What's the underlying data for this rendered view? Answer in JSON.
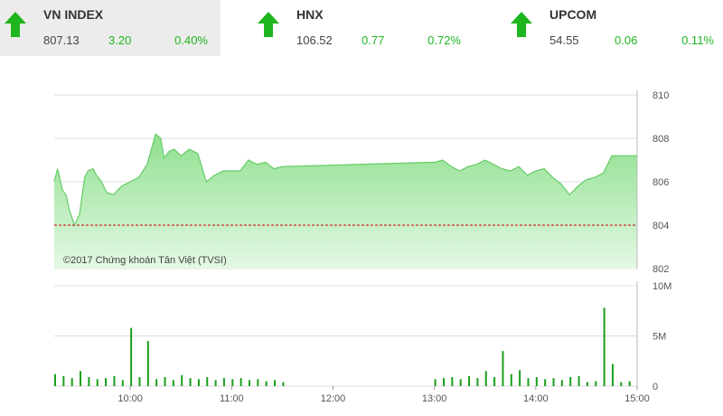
{
  "indices": [
    {
      "name": "VN INDEX",
      "value": "807.13",
      "change": "3.20",
      "percent": "0.40%",
      "direction": "up",
      "active": true
    },
    {
      "name": "HNX",
      "value": "106.52",
      "change": "0.77",
      "percent": "0.72%",
      "direction": "up",
      "active": false
    },
    {
      "name": "UPCOM",
      "value": "54.55",
      "change": "0.06",
      "percent": "0.11%",
      "direction": "up",
      "active": false
    }
  ],
  "colors": {
    "up": "#1fb51f",
    "area_top": "#8fe08f",
    "area_bottom": "#e4f8e4",
    "line": "#66cc66",
    "reference": "#cc0000",
    "volume": "#1a9e1a"
  },
  "chart_data": [
    {
      "type": "area",
      "copyright": "©2017 Chứng khoán Tân Việt (TVSI)",
      "reference_value": 804,
      "y_ticks": [
        "810",
        "808",
        "806",
        "804",
        "802"
      ],
      "ylim": [
        802,
        810
      ],
      "xlim": [
        "09:15",
        "15:00"
      ],
      "x": [
        "09:15",
        "09:17",
        "09:20",
        "09:22",
        "09:24",
        "09:27",
        "09:30",
        "09:33",
        "09:35",
        "09:38",
        "09:40",
        "09:43",
        "09:46",
        "09:50",
        "09:55",
        "10:00",
        "10:05",
        "10:10",
        "10:15",
        "10:18",
        "10:20",
        "10:23",
        "10:26",
        "10:30",
        "10:35",
        "10:40",
        "10:45",
        "10:50",
        "10:55",
        "11:00",
        "11:05",
        "11:10",
        "11:15",
        "11:20",
        "11:25",
        "11:30",
        "13:00",
        "13:05",
        "13:10",
        "13:15",
        "13:20",
        "13:25",
        "13:30",
        "13:35",
        "13:40",
        "13:45",
        "13:50",
        "13:55",
        "14:00",
        "14:05",
        "14:10",
        "14:15",
        "14:20",
        "14:25",
        "14:30",
        "14:35",
        "14:40",
        "14:45",
        "14:50",
        "14:55",
        "15:00"
      ],
      "y": [
        806.0,
        806.6,
        805.6,
        805.4,
        804.7,
        804.0,
        804.5,
        806.2,
        806.5,
        806.6,
        806.3,
        806.0,
        805.5,
        805.4,
        805.8,
        806.0,
        806.2,
        806.8,
        808.2,
        808.0,
        807.1,
        807.4,
        807.5,
        807.2,
        807.5,
        807.3,
        806.0,
        806.3,
        806.5,
        806.5,
        806.5,
        807.0,
        806.8,
        806.9,
        806.6,
        806.7,
        806.9,
        807.0,
        806.7,
        806.5,
        806.7,
        806.8,
        807.0,
        806.8,
        806.6,
        806.5,
        806.7,
        806.3,
        806.5,
        806.6,
        806.2,
        805.9,
        805.4,
        805.8,
        806.1,
        806.2,
        806.4,
        807.2,
        807.2,
        807.2,
        807.2
      ]
    },
    {
      "type": "bar",
      "y_ticks": [
        "10M",
        "5M",
        "0"
      ],
      "ylim": [
        0,
        10
      ],
      "x_ticks": [
        "10:00",
        "11:00",
        "12:00",
        "13:00",
        "14:00",
        "15:00"
      ],
      "x": [
        "09:15",
        "09:20",
        "09:25",
        "09:30",
        "09:35",
        "09:40",
        "09:45",
        "09:50",
        "09:55",
        "10:00",
        "10:05",
        "10:10",
        "10:15",
        "10:20",
        "10:25",
        "10:30",
        "10:35",
        "10:40",
        "10:45",
        "10:50",
        "10:55",
        "11:00",
        "11:05",
        "11:10",
        "11:15",
        "11:20",
        "11:25",
        "11:30",
        "13:00",
        "13:05",
        "13:10",
        "13:15",
        "13:20",
        "13:25",
        "13:30",
        "13:35",
        "13:40",
        "13:45",
        "13:50",
        "13:55",
        "14:00",
        "14:05",
        "14:10",
        "14:15",
        "14:20",
        "14:25",
        "14:30",
        "14:35",
        "14:40",
        "14:45",
        "14:50",
        "14:55"
      ],
      "values": [
        1.2,
        1.0,
        0.8,
        1.5,
        0.9,
        0.7,
        0.8,
        1.0,
        0.6,
        5.8,
        0.9,
        4.5,
        0.7,
        0.9,
        0.6,
        1.1,
        0.8,
        0.7,
        0.9,
        0.6,
        0.8,
        0.7,
        0.8,
        0.6,
        0.7,
        0.5,
        0.6,
        0.4,
        0.7,
        0.8,
        0.9,
        0.7,
        1.0,
        0.8,
        1.5,
        0.9,
        3.5,
        1.2,
        1.6,
        0.8,
        0.9,
        0.7,
        0.8,
        0.6,
        0.9,
        1.0,
        0.4,
        0.5,
        7.8,
        2.2,
        0.4,
        0.5
      ]
    }
  ]
}
